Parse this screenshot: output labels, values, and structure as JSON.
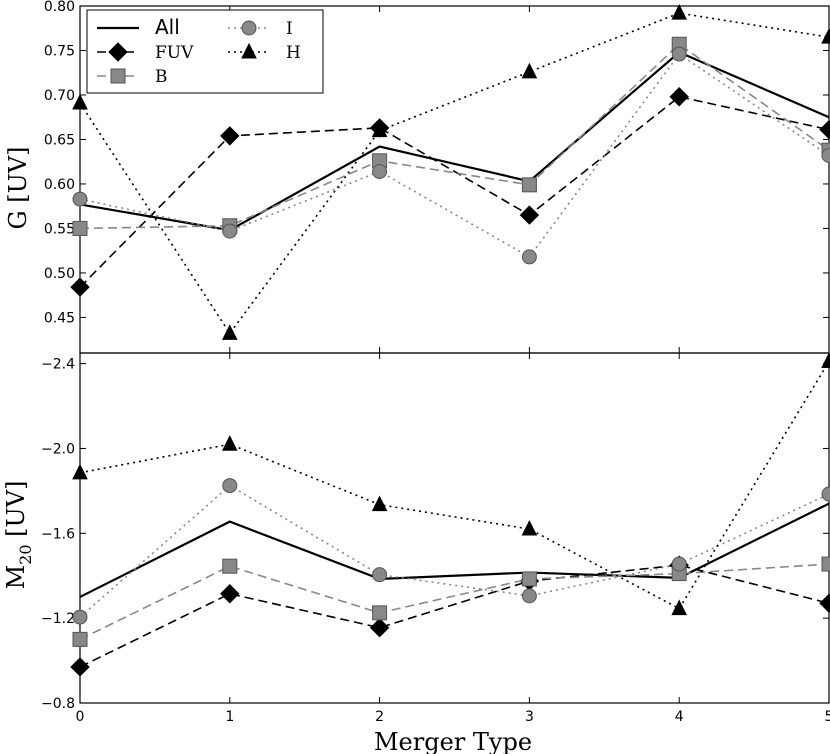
{
  "chart_data": [
    {
      "type": "line",
      "panel": "top",
      "xlabel": "",
      "ylabel": "G [UV]",
      "x": [
        0,
        1,
        2,
        3,
        4,
        5
      ],
      "xlim": [
        0,
        5
      ],
      "ylim": [
        0.41,
        0.8
      ],
      "yticks": [
        0.45,
        0.5,
        0.55,
        0.6,
        0.65,
        0.7,
        0.75,
        0.8
      ],
      "ytick_labels": [
        "0.45",
        "0.50",
        "0.55",
        "0.60",
        "0.65",
        "0.70",
        "0.75",
        "0.80"
      ],
      "grid": false,
      "legend": "top-left",
      "series": [
        {
          "name": "All",
          "color": "#000000",
          "style": "solid",
          "marker": "none",
          "values": [
            0.577,
            0.548,
            0.642,
            0.603,
            0.748,
            0.675
          ]
        },
        {
          "name": "FUV",
          "color": "#000000",
          "style": "dashed",
          "marker": "diamond",
          "values": [
            0.484,
            0.654,
            0.663,
            0.565,
            0.698,
            0.661
          ]
        },
        {
          "name": "B",
          "color": "#888888",
          "style": "dashed",
          "marker": "square",
          "values": [
            0.55,
            0.553,
            0.626,
            0.599,
            0.757,
            0.638
          ]
        },
        {
          "name": "I",
          "color": "#888888",
          "style": "dotted",
          "marker": "circle",
          "values": [
            0.583,
            0.547,
            0.614,
            0.518,
            0.746,
            0.632
          ]
        },
        {
          "name": "H",
          "color": "#000000",
          "style": "dotted",
          "marker": "triangle",
          "values": [
            0.691,
            0.432,
            0.66,
            0.726,
            0.792,
            0.765
          ]
        }
      ]
    },
    {
      "type": "line",
      "panel": "bottom",
      "xlabel": "Merger Type",
      "ylabel": "M20 [UV]",
      "x": [
        0,
        1,
        2,
        3,
        4,
        5
      ],
      "xlim": [
        0,
        5
      ],
      "ylim": [
        -0.8,
        -2.45
      ],
      "yaxis_inverted": true,
      "yticks": [
        -0.8,
        -1.2,
        -1.6,
        -2.0,
        -2.4
      ],
      "ytick_labels": [
        "−0.8",
        "−1.2",
        "−1.6",
        "−2.0",
        "−2.4"
      ],
      "xticks": [
        0,
        1,
        2,
        3,
        4,
        5
      ],
      "xtick_labels": [
        "0",
        "1",
        "2",
        "3",
        "4",
        "5"
      ],
      "grid": false,
      "series": [
        {
          "name": "All",
          "color": "#000000",
          "style": "solid",
          "marker": "none",
          "values": [
            -1.3,
            -1.655,
            -1.385,
            -1.415,
            -1.39,
            -1.74
          ]
        },
        {
          "name": "FUV",
          "color": "#000000",
          "style": "dashed",
          "marker": "diamond",
          "values": [
            -0.97,
            -1.315,
            -1.155,
            -1.375,
            -1.45,
            -1.27
          ]
        },
        {
          "name": "B",
          "color": "#888888",
          "style": "dashed",
          "marker": "square",
          "values": [
            -1.1,
            -1.445,
            -1.225,
            -1.385,
            -1.41,
            -1.455
          ]
        },
        {
          "name": "I",
          "color": "#888888",
          "style": "dotted",
          "marker": "circle",
          "values": [
            -1.205,
            -1.825,
            -1.405,
            -1.305,
            -1.455,
            -1.785
          ]
        },
        {
          "name": "H",
          "color": "#000000",
          "style": "dotted",
          "marker": "triangle",
          "values": [
            -1.885,
            -2.02,
            -1.735,
            -1.62,
            -1.245,
            -2.41
          ]
        }
      ]
    }
  ],
  "legend": {
    "entries": [
      {
        "name": "All",
        "color": "#000000",
        "style": "solid",
        "marker": "none",
        "font": "sans"
      },
      {
        "name": "FUV",
        "color": "#000000",
        "style": "dashed",
        "marker": "diamond",
        "font": "serif"
      },
      {
        "name": "B",
        "color": "#888888",
        "style": "dashed",
        "marker": "square",
        "font": "serif"
      },
      {
        "name": "I",
        "color": "#888888",
        "style": "dotted",
        "marker": "circle",
        "font": "serif"
      },
      {
        "name": "H",
        "color": "#000000",
        "style": "dotted",
        "marker": "triangle",
        "font": "serif"
      }
    ]
  }
}
